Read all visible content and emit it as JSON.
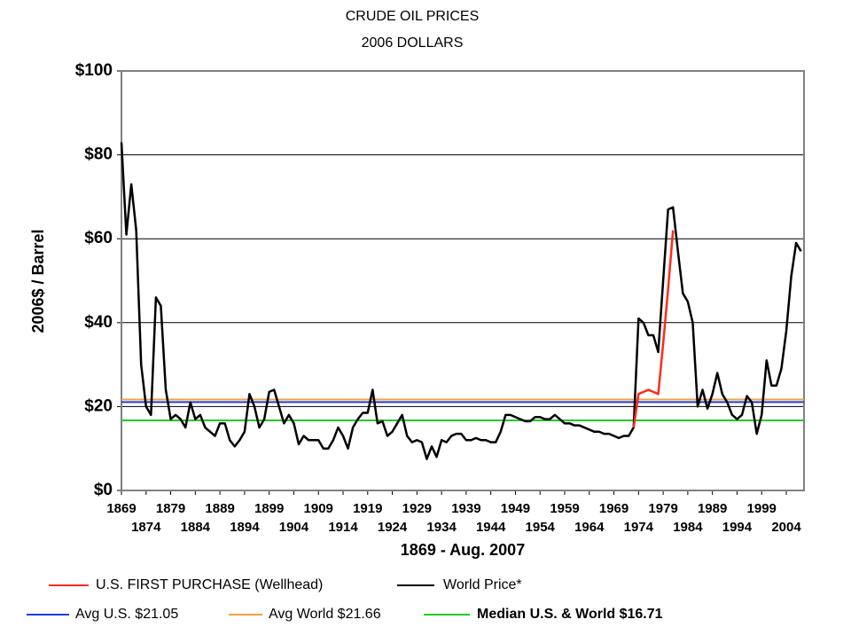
{
  "chart_data": {
    "type": "line",
    "title": "CRUDE OIL PRICES",
    "subtitle": "2006 DOLLARS",
    "y_label": "2006$ / Barrel",
    "x_label": "1869 - Aug. 2007",
    "xlim": [
      1869,
      2007.6
    ],
    "xticks": [
      1869,
      1874,
      1879,
      1884,
      1889,
      1894,
      1899,
      1904,
      1909,
      1914,
      1919,
      1924,
      1929,
      1934,
      1939,
      1944,
      1949,
      1954,
      1959,
      1964,
      1969,
      1974,
      1979,
      1984,
      1989,
      1994,
      1999,
      2004
    ],
    "ylim": [
      0,
      100
    ],
    "yticks": [
      {
        "value": 0,
        "label": "$0"
      },
      {
        "value": 20,
        "label": "$20"
      },
      {
        "value": 40,
        "label": "$40"
      },
      {
        "value": 60,
        "label": "$60"
      },
      {
        "value": 80,
        "label": "$80"
      },
      {
        "value": 100,
        "label": "$100"
      }
    ],
    "grid": true,
    "series": [
      {
        "name": "U.S. FIRST PURCHASE (Wellhead)",
        "color": "#ff2a1a",
        "x": [
          1973,
          1974,
          1975,
          1976,
          1977,
          1978,
          1979,
          1980,
          1981
        ],
        "values": [
          15,
          23,
          23.5,
          24,
          23.5,
          23,
          35,
          48,
          62
        ]
      },
      {
        "name": "World Price*",
        "color": "#000000",
        "x": [
          1869,
          1870,
          1871,
          1872,
          1873,
          1874,
          1875,
          1876,
          1877,
          1878,
          1879,
          1880,
          1881,
          1882,
          1883,
          1884,
          1885,
          1886,
          1887,
          1888,
          1889,
          1890,
          1891,
          1892,
          1893,
          1894,
          1895,
          1896,
          1897,
          1898,
          1899,
          1900,
          1901,
          1902,
          1903,
          1904,
          1905,
          1906,
          1907,
          1908,
          1909,
          1910,
          1911,
          1912,
          1913,
          1914,
          1915,
          1916,
          1917,
          1918,
          1919,
          1920,
          1921,
          1922,
          1923,
          1924,
          1925,
          1926,
          1927,
          1928,
          1929,
          1930,
          1931,
          1932,
          1933,
          1934,
          1935,
          1936,
          1937,
          1938,
          1939,
          1940,
          1941,
          1942,
          1943,
          1944,
          1945,
          1946,
          1947,
          1948,
          1949,
          1950,
          1951,
          1952,
          1953,
          1954,
          1955,
          1956,
          1957,
          1958,
          1959,
          1960,
          1961,
          1962,
          1963,
          1964,
          1965,
          1966,
          1967,
          1968,
          1969,
          1970,
          1971,
          1972,
          1973,
          1974,
          1975,
          1976,
          1977,
          1978,
          1979,
          1980,
          1981,
          1982,
          1983,
          1984,
          1985,
          1986,
          1987,
          1988,
          1989,
          1990,
          1991,
          1992,
          1993,
          1994,
          1995,
          1996,
          1997,
          1998,
          1999,
          2000,
          2001,
          2002,
          2003,
          2004,
          2005,
          2006,
          2007
        ],
        "values": [
          83,
          61,
          73,
          62,
          30,
          20,
          18,
          46,
          44,
          24,
          17,
          18,
          17,
          15,
          21,
          17,
          18,
          15,
          14,
          13,
          16,
          16,
          12,
          10.5,
          12,
          14,
          23,
          20,
          15,
          17,
          23.5,
          24,
          20,
          16,
          18,
          16,
          11,
          13,
          12,
          12,
          12,
          10,
          10,
          12,
          15,
          13,
          10,
          15,
          17,
          18.5,
          18.5,
          24,
          16,
          16.5,
          13,
          14,
          16,
          18,
          13,
          11.5,
          12,
          11.5,
          7.5,
          10.5,
          8,
          12,
          11.5,
          13,
          13.5,
          13.5,
          12,
          12,
          12.5,
          12,
          12,
          11.5,
          11.5,
          14,
          18,
          18,
          17.5,
          17,
          16.5,
          16.5,
          17.5,
          17.5,
          17,
          17,
          18,
          17,
          16,
          16,
          15.5,
          15.5,
          15,
          14.5,
          14,
          14,
          13.5,
          13.5,
          13,
          12.5,
          13,
          13,
          15,
          41,
          40,
          37,
          37,
          33,
          50,
          67,
          67.5,
          57,
          47,
          45,
          40,
          20,
          24,
          19.5,
          23,
          28,
          23,
          21,
          18,
          17,
          18,
          22.5,
          21,
          13.5,
          18,
          31,
          25,
          25,
          29,
          38,
          51,
          59,
          57
        ]
      }
    ],
    "reference_lines": [
      {
        "name": "Avg U.S. $21.05",
        "value": 21.05,
        "color": "#1f3fd6"
      },
      {
        "name": "Avg World $21.66",
        "value": 21.66,
        "color": "#f5a040"
      },
      {
        "name": "Median U.S. & World  $16.71",
        "value": 16.71,
        "color": "#22cc22"
      }
    ]
  }
}
